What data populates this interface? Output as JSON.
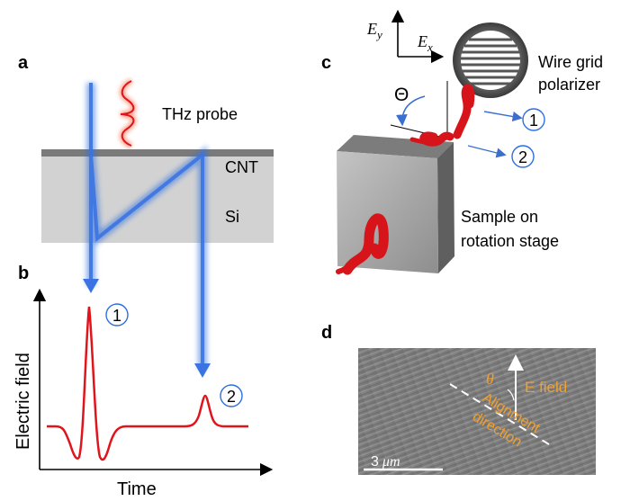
{
  "panels": {
    "a": "a",
    "b": "b",
    "c": "c",
    "d": "d"
  },
  "panel_a": {
    "probe_label": "THz probe",
    "layer_top": "CNT",
    "layer_bottom": "Si"
  },
  "panel_b": {
    "ylabel": "Electric field",
    "xlabel": "Time",
    "pulse_1": "1",
    "pulse_2": "2"
  },
  "panel_c": {
    "axis_y": "E",
    "axis_y_sub": "y",
    "axis_x": "E",
    "axis_x_sub": "x",
    "angle": "Θ",
    "polarizer_line1": "Wire grid",
    "polarizer_line2": "polarizer",
    "sample_line1": "Sample on",
    "sample_line2": "rotation stage",
    "beam_1": "1",
    "beam_2": "2"
  },
  "panel_d": {
    "angle": "θ",
    "field_label": "E field",
    "alignment_line1": "Alignment",
    "alignment_line2": "direction",
    "scalebar_number": "3",
    "scalebar_unit": "μm"
  },
  "colors": {
    "beam": "#2e6fe0",
    "pulse": "#e0141b",
    "label_accent": "#f0a030",
    "cnt": "#7a7a7a",
    "si": "#d2d2d2"
  }
}
